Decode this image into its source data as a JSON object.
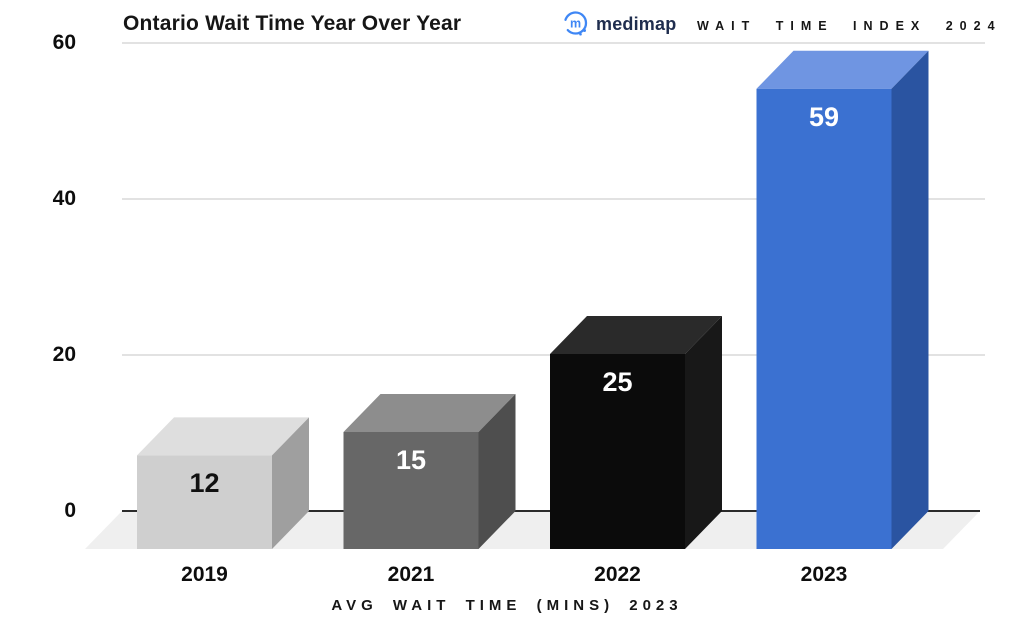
{
  "header": {
    "title": "Ontario Wait Time Year Over Year",
    "brand": "medimap",
    "index_label": "WAIT TIME INDEX 2024"
  },
  "chart_data": {
    "type": "bar",
    "style": "3d-boxes",
    "title": "Ontario Wait Time Year Over Year",
    "xlabel": "AVG WAIT TIME (MINS) 2023",
    "ylabel": "",
    "ylim": [
      0,
      60
    ],
    "yticks": [
      0,
      20,
      40,
      60
    ],
    "ytick_labels": [
      "0",
      "20",
      "40",
      "60"
    ],
    "grid": "horizontal",
    "legend": "none",
    "categories": [
      "2019",
      "2021",
      "2022",
      "2023"
    ],
    "values": [
      12,
      15,
      25,
      59
    ],
    "bars": [
      {
        "year": "2019",
        "value": 12,
        "front": "#cfcfcf",
        "top": "#dedede",
        "side": "#9f9f9f",
        "label_color": "#111111"
      },
      {
        "year": "2021",
        "value": 15,
        "front": "#676767",
        "top": "#8d8d8d",
        "side": "#4e4e4e",
        "label_color": "#ffffff"
      },
      {
        "year": "2022",
        "value": 25,
        "front": "#0b0b0b",
        "top": "#2a2a2a",
        "side": "#181818",
        "label_color": "#ffffff"
      },
      {
        "year": "2023",
        "value": 59,
        "front": "#3b71d1",
        "top": "#6f95e2",
        "side": "#2a54a1",
        "label_color": "#ffffff"
      }
    ],
    "colors": {
      "gridline": "#d9d9d9",
      "zero_line": "#2b2b2b",
      "floor": "#efefef",
      "brand_blue": "#3f87f5",
      "brand_text": "#1f2d4e"
    }
  }
}
